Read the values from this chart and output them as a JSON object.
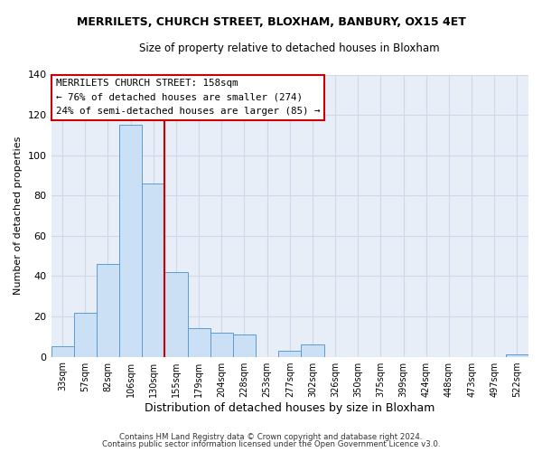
{
  "title": "MERRILETS, CHURCH STREET, BLOXHAM, BANBURY, OX15 4ET",
  "subtitle": "Size of property relative to detached houses in Bloxham",
  "xlabel": "Distribution of detached houses by size in Bloxham",
  "ylabel": "Number of detached properties",
  "bin_labels": [
    "33sqm",
    "57sqm",
    "82sqm",
    "106sqm",
    "130sqm",
    "155sqm",
    "179sqm",
    "204sqm",
    "228sqm",
    "253sqm",
    "277sqm",
    "302sqm",
    "326sqm",
    "350sqm",
    "375sqm",
    "399sqm",
    "424sqm",
    "448sqm",
    "473sqm",
    "497sqm",
    "522sqm"
  ],
  "bar_heights": [
    5,
    22,
    46,
    115,
    86,
    42,
    14,
    12,
    11,
    0,
    3,
    6,
    0,
    0,
    0,
    0,
    0,
    0,
    0,
    0,
    1
  ],
  "bar_color": "#cce0f5",
  "bar_edge_color": "#5b9bd5",
  "ylim": [
    0,
    140
  ],
  "yticks": [
    0,
    20,
    40,
    60,
    80,
    100,
    120,
    140
  ],
  "vline_color": "#cc0000",
  "annotation_title": "MERRILETS CHURCH STREET: 158sqm",
  "annotation_line1": "← 76% of detached houses are smaller (274)",
  "annotation_line2": "24% of semi-detached houses are larger (85) →",
  "footer1": "Contains HM Land Registry data © Crown copyright and database right 2024.",
  "footer2": "Contains public sector information licensed under the Open Government Licence v3.0.",
  "background_color": "#ffffff",
  "plot_bg_color": "#e8eef8"
}
